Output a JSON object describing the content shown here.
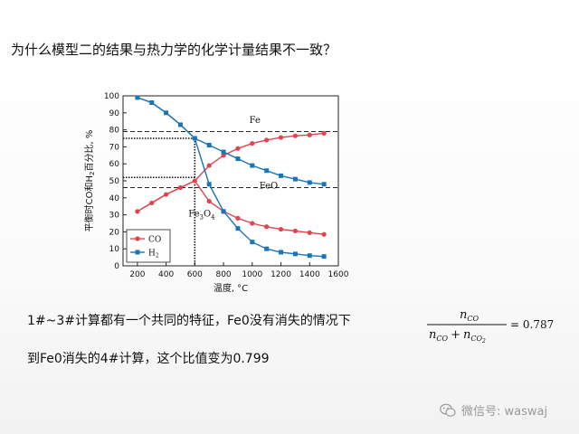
{
  "slide": {
    "title": "为什么模型二的结果与热力学的化学计量结果不一致？",
    "text_line1": "1#~3#计算都有一个共同的特征，Fe0没有消失的情况下",
    "text_line2": "到Fe0消失的4#计算，这个比值变为0.799",
    "formula": {
      "numerator": "n",
      "numerator_sub": "CO",
      "den_left": "n",
      "den_left_sub": "CO",
      "den_plus": "+",
      "den_right": "n",
      "den_right_sub": "CO",
      "den_right_subsub": "2",
      "result": "= 0.787"
    },
    "watermark": "微信号: waswaj"
  },
  "chart_data": {
    "type": "line",
    "xlabel": "温度, °C",
    "ylabel_parts": [
      "平衡时CO和H",
      "2",
      "百分比, %"
    ],
    "xlim": [
      100,
      1600
    ],
    "ylim": [
      0,
      100
    ],
    "xticks": [
      200,
      400,
      600,
      800,
      1000,
      1200,
      1400,
      1600
    ],
    "yticks": [
      0,
      10,
      20,
      30,
      40,
      50,
      60,
      70,
      80,
      90,
      100
    ],
    "series": [
      {
        "name": "CO",
        "color": "#e2434f",
        "marker": "circle",
        "x": [
          200,
          300,
          400,
          500,
          600,
          700,
          800,
          900,
          1000,
          1100,
          1200,
          1300,
          1400,
          1500
        ],
        "y_upper": [
          32,
          37,
          42,
          46,
          50,
          59,
          65,
          69,
          72,
          74,
          75.5,
          76.5,
          77,
          78
        ],
        "y_lower": [
          32,
          37,
          42,
          46,
          50,
          38,
          32,
          28,
          25,
          23,
          21.5,
          20.5,
          19.5,
          18.5
        ]
      },
      {
        "name": "H2",
        "label": "H",
        "label_sub": "2",
        "color": "#1a75b8",
        "marker": "square",
        "x": [
          200,
          300,
          400,
          500,
          600,
          700,
          800,
          900,
          1000,
          1100,
          1200,
          1300,
          1400,
          1500
        ],
        "y_upper": [
          99,
          96,
          90,
          83,
          75,
          71,
          67,
          63,
          59,
          56,
          53,
          51,
          49,
          48
        ],
        "y_lower": [
          99,
          96,
          90,
          83,
          75,
          48,
          32,
          22,
          14,
          10,
          8,
          7,
          6,
          5.5
        ]
      }
    ],
    "reference_lines": {
      "dashed": [
        79,
        46
      ],
      "dotted_h": [
        75,
        52
      ],
      "dotted_v": 600
    },
    "annotations": [
      {
        "text": "Fe",
        "x": 980,
        "y": 84
      },
      {
        "text": "FeO",
        "x": 1050,
        "y": 45.5
      },
      {
        "text": "Fe",
        "sub": "3",
        "text2": "O",
        "sub2": "4",
        "x": 555,
        "y": 29
      }
    ],
    "legend": {
      "position": "bottom-left"
    }
  }
}
